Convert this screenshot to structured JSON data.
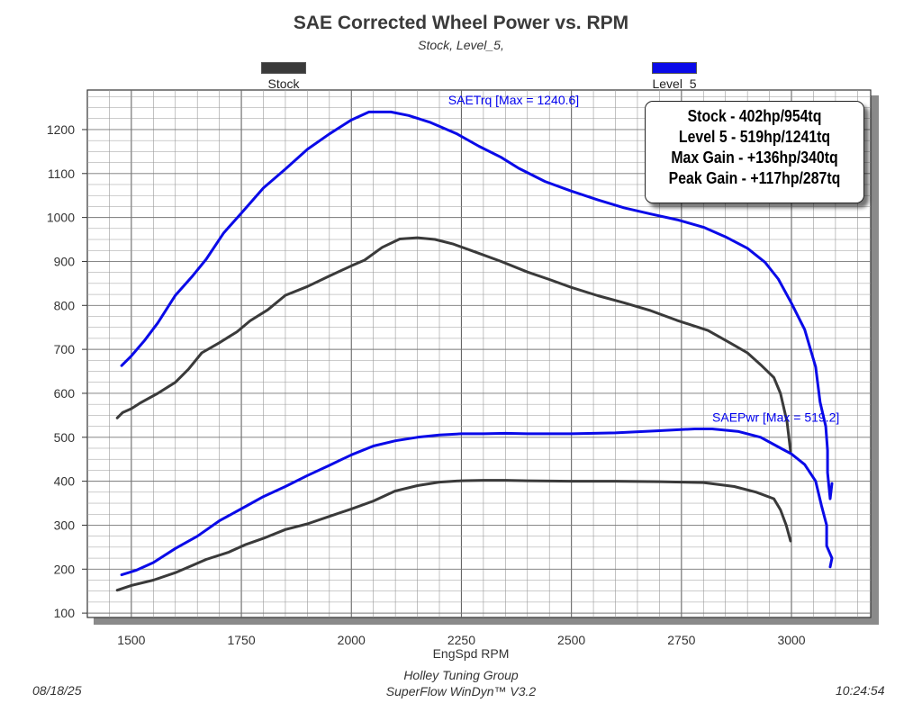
{
  "title": "SAE Corrected Wheel Power vs. RPM",
  "subtitle": "Stock, Level_5,",
  "stats": [
    "Stock - 402hp/954tq",
    "Level 5 - 519hp/1241tq",
    "Max Gain - +136hp/340tq",
    "Peak Gain - +117hp/287tq"
  ],
  "footer": {
    "date": "08/18/25",
    "company": "Holley Tuning Group",
    "software": "SuperFlow WinDyn™ V3.2",
    "time": "10:24:54"
  },
  "colors": {
    "stock": "#3a3a3a",
    "level5": "#0a0ae8",
    "grid": "#9a9a9a"
  },
  "chart_data": {
    "type": "line",
    "title": "SAE Corrected Wheel Power vs. RPM",
    "subtitle": "Stock, Level_5,",
    "xlabel": "EngSpd RPM",
    "ylabel": "",
    "xlim": [
      1400,
      3180
    ],
    "ylim": [
      90,
      1290
    ],
    "xticks": [
      1500,
      1750,
      2000,
      2250,
      2500,
      2750,
      3000
    ],
    "yticks": [
      100,
      200,
      300,
      400,
      500,
      600,
      700,
      800,
      900,
      1000,
      1100,
      1200
    ],
    "grid": true,
    "legend_position": "top",
    "legend": [
      {
        "name": "Stock",
        "color": "#3a3a3a"
      },
      {
        "name": "Level_5",
        "color": "#0a0ae8"
      }
    ],
    "annotations": [
      {
        "text": "SAETrq [Max = 1240.6]",
        "x": 2220,
        "y": 1257
      },
      {
        "text": "SAEPwr [Max = 519.2]",
        "x": 2820,
        "y": 535
      }
    ],
    "series": [
      {
        "name": "Stock",
        "metric": "SAETrq",
        "color": "#3a3a3a",
        "points": [
          [
            1468,
            544
          ],
          [
            1480,
            556
          ],
          [
            1500,
            565
          ],
          [
            1520,
            578
          ],
          [
            1560,
            600
          ],
          [
            1600,
            625
          ],
          [
            1630,
            655
          ],
          [
            1660,
            692
          ],
          [
            1700,
            715
          ],
          [
            1740,
            740
          ],
          [
            1770,
            765
          ],
          [
            1810,
            790
          ],
          [
            1850,
            823
          ],
          [
            1900,
            843
          ],
          [
            1950,
            867
          ],
          [
            2000,
            890
          ],
          [
            2030,
            903
          ],
          [
            2070,
            932
          ],
          [
            2110,
            951
          ],
          [
            2150,
            954
          ],
          [
            2190,
            950
          ],
          [
            2230,
            940
          ],
          [
            2280,
            922
          ],
          [
            2340,
            900
          ],
          [
            2400,
            876
          ],
          [
            2450,
            859
          ],
          [
            2500,
            841
          ],
          [
            2560,
            822
          ],
          [
            2620,
            806
          ],
          [
            2680,
            788
          ],
          [
            2740,
            766
          ],
          [
            2810,
            743
          ],
          [
            2860,
            715
          ],
          [
            2900,
            692
          ],
          [
            2930,
            665
          ],
          [
            2960,
            636
          ],
          [
            2975,
            600
          ],
          [
            2990,
            535
          ],
          [
            2998,
            468
          ]
        ]
      },
      {
        "name": "Level_5",
        "metric": "SAETrq",
        "color": "#0a0ae8",
        "points": [
          [
            1478,
            663
          ],
          [
            1500,
            685
          ],
          [
            1530,
            720
          ],
          [
            1560,
            760
          ],
          [
            1600,
            823
          ],
          [
            1640,
            868
          ],
          [
            1670,
            905
          ],
          [
            1710,
            965
          ],
          [
            1750,
            1010
          ],
          [
            1800,
            1067
          ],
          [
            1850,
            1110
          ],
          [
            1900,
            1155
          ],
          [
            1950,
            1190
          ],
          [
            2000,
            1222
          ],
          [
            2040,
            1240
          ],
          [
            2090,
            1240
          ],
          [
            2130,
            1232
          ],
          [
            2180,
            1216
          ],
          [
            2240,
            1190
          ],
          [
            2290,
            1162
          ],
          [
            2340,
            1137
          ],
          [
            2380,
            1112
          ],
          [
            2440,
            1082
          ],
          [
            2500,
            1060
          ],
          [
            2560,
            1040
          ],
          [
            2620,
            1022
          ],
          [
            2680,
            1008
          ],
          [
            2740,
            995
          ],
          [
            2800,
            978
          ],
          [
            2850,
            956
          ],
          [
            2900,
            930
          ],
          [
            2940,
            898
          ],
          [
            2970,
            860
          ],
          [
            3000,
            805
          ],
          [
            3030,
            745
          ],
          [
            3055,
            660
          ],
          [
            3065,
            580
          ],
          [
            3078,
            525
          ],
          [
            3082,
            470
          ],
          [
            3082,
            420
          ],
          [
            3088,
            360
          ],
          [
            3092,
            395
          ]
        ]
      },
      {
        "name": "Stock",
        "metric": "SAEPwr",
        "color": "#3a3a3a",
        "points": [
          [
            1468,
            152
          ],
          [
            1500,
            163
          ],
          [
            1550,
            175
          ],
          [
            1600,
            192
          ],
          [
            1640,
            209
          ],
          [
            1670,
            222
          ],
          [
            1720,
            238
          ],
          [
            1760,
            256
          ],
          [
            1800,
            270
          ],
          [
            1850,
            290
          ],
          [
            1900,
            303
          ],
          [
            1950,
            320
          ],
          [
            2000,
            337
          ],
          [
            2050,
            355
          ],
          [
            2100,
            378
          ],
          [
            2150,
            390
          ],
          [
            2200,
            398
          ],
          [
            2250,
            401
          ],
          [
            2300,
            402
          ],
          [
            2350,
            402
          ],
          [
            2400,
            401
          ],
          [
            2500,
            400
          ],
          [
            2600,
            400
          ],
          [
            2700,
            399
          ],
          [
            2800,
            397
          ],
          [
            2870,
            388
          ],
          [
            2920,
            375
          ],
          [
            2960,
            360
          ],
          [
            2975,
            335
          ],
          [
            2988,
            300
          ],
          [
            2998,
            264
          ]
        ]
      },
      {
        "name": "Level_5",
        "metric": "SAEPwr",
        "color": "#0a0ae8",
        "points": [
          [
            1478,
            187
          ],
          [
            1510,
            197
          ],
          [
            1550,
            215
          ],
          [
            1600,
            247
          ],
          [
            1650,
            275
          ],
          [
            1700,
            310
          ],
          [
            1760,
            343
          ],
          [
            1800,
            365
          ],
          [
            1850,
            388
          ],
          [
            1900,
            413
          ],
          [
            1950,
            436
          ],
          [
            2000,
            460
          ],
          [
            2050,
            480
          ],
          [
            2100,
            492
          ],
          [
            2150,
            500
          ],
          [
            2200,
            505
          ],
          [
            2250,
            508
          ],
          [
            2300,
            508
          ],
          [
            2350,
            509
          ],
          [
            2400,
            508
          ],
          [
            2500,
            508
          ],
          [
            2600,
            510
          ],
          [
            2700,
            515
          ],
          [
            2780,
            519
          ],
          [
            2820,
            519
          ],
          [
            2880,
            513
          ],
          [
            2930,
            500
          ],
          [
            2970,
            478
          ],
          [
            3000,
            462
          ],
          [
            3030,
            438
          ],
          [
            3055,
            400
          ],
          [
            3068,
            345
          ],
          [
            3080,
            300
          ],
          [
            3080,
            253
          ],
          [
            3092,
            225
          ],
          [
            3088,
            205
          ]
        ]
      }
    ]
  }
}
